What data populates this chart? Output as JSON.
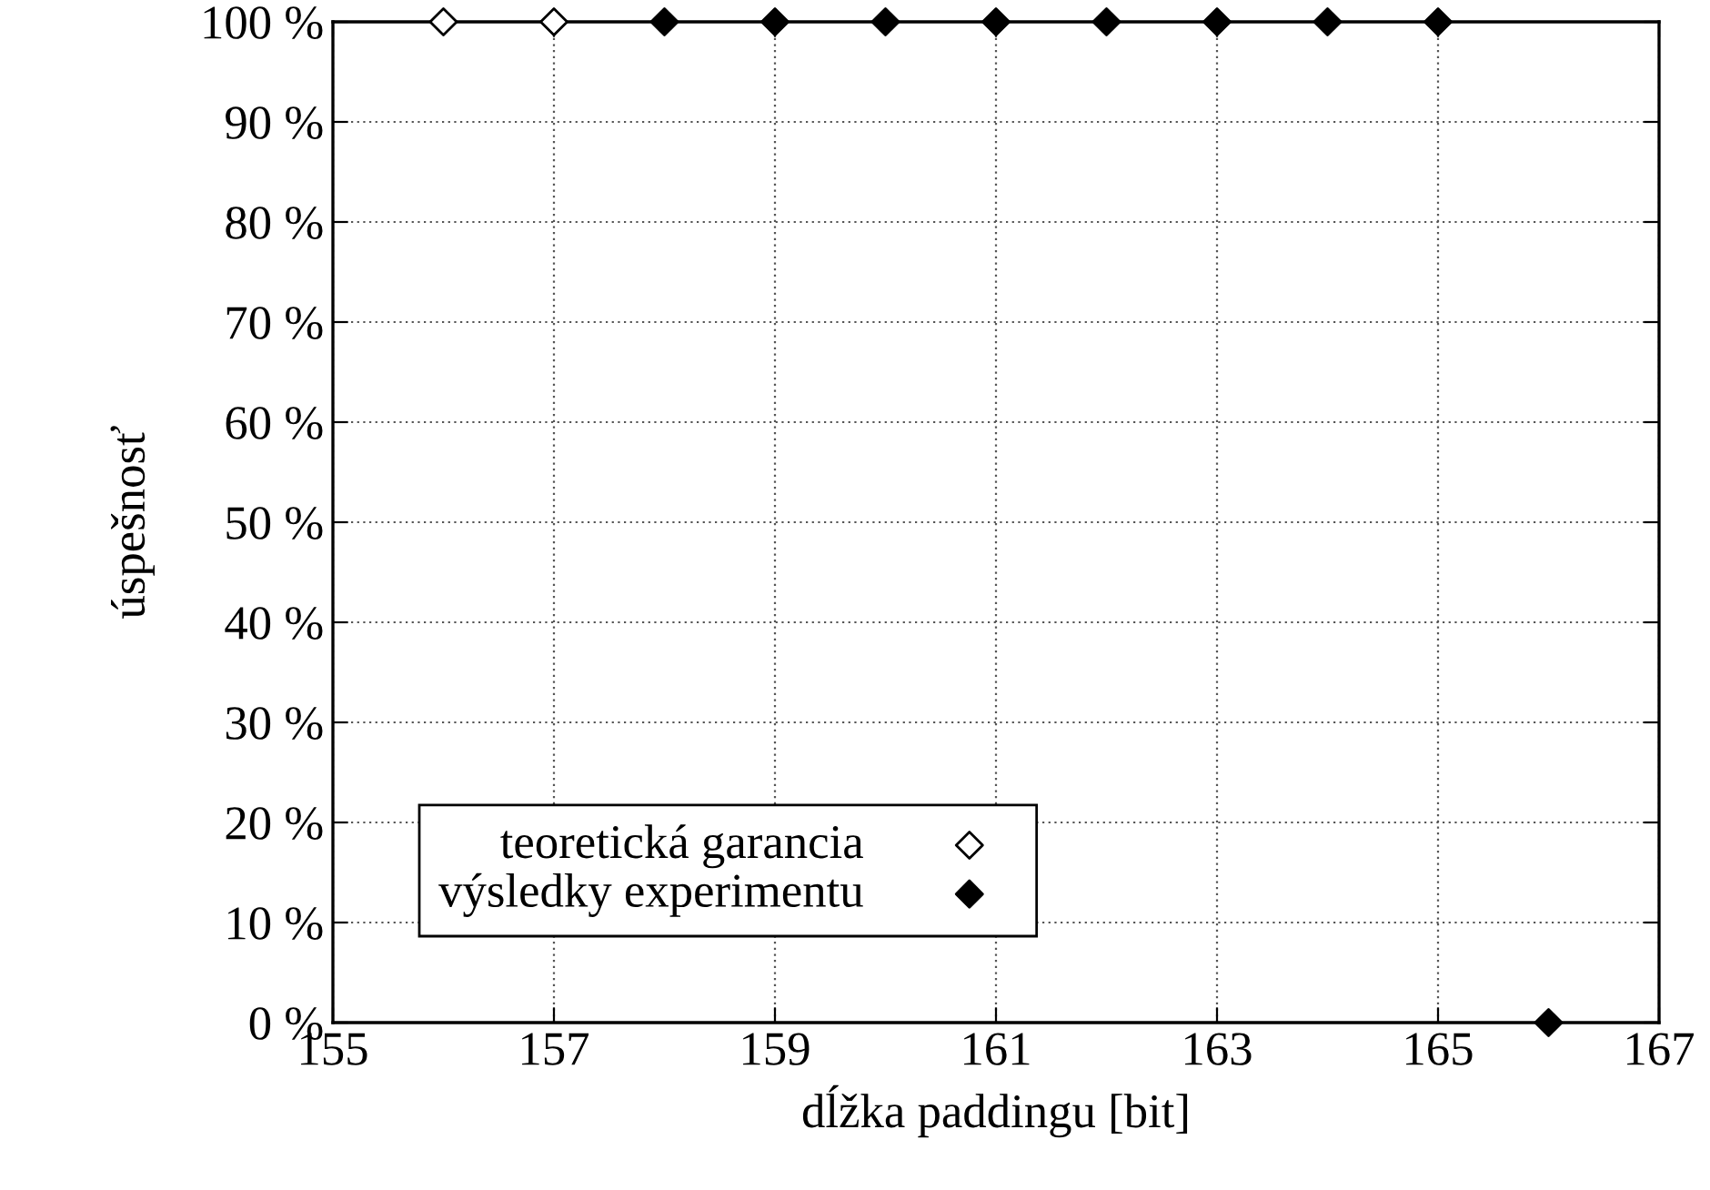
{
  "chart_data": {
    "type": "scatter",
    "xlabel": "dĺžka paddingu [bit]",
    "ylabel": "úspešnosť",
    "series": [
      {
        "name": "teoretická garancia",
        "color": "#000000",
        "marker": "diamond_open",
        "x": [
          156,
          157
        ],
        "values": [
          100,
          100
        ]
      },
      {
        "name": "výsledky experimentu",
        "color": "#000000",
        "marker": "diamond",
        "x": [
          158,
          159,
          160,
          161,
          162,
          163,
          164,
          165,
          166
        ],
        "values": [
          100,
          100,
          100,
          100,
          100,
          100,
          100,
          100,
          0
        ]
      }
    ],
    "xlim": [
      155,
      167
    ],
    "xticks": [
      155,
      157,
      159,
      161,
      163,
      165,
      167
    ],
    "ylim": [
      0,
      100
    ],
    "yticks": [
      {
        "value": 0,
        "label": "0 %"
      },
      {
        "value": 10,
        "label": "10 %"
      },
      {
        "value": 20,
        "label": "20 %"
      },
      {
        "value": 30,
        "label": "30 %"
      },
      {
        "value": 40,
        "label": "40 %"
      },
      {
        "value": 50,
        "label": "50 %"
      },
      {
        "value": 60,
        "label": "60 %"
      },
      {
        "value": 70,
        "label": "70 %"
      },
      {
        "value": 80,
        "label": "80 %"
      },
      {
        "value": 90,
        "label": "90 %"
      },
      {
        "value": 100,
        "label": "100 %"
      }
    ],
    "grid": true,
    "legend": "bottom left"
  }
}
